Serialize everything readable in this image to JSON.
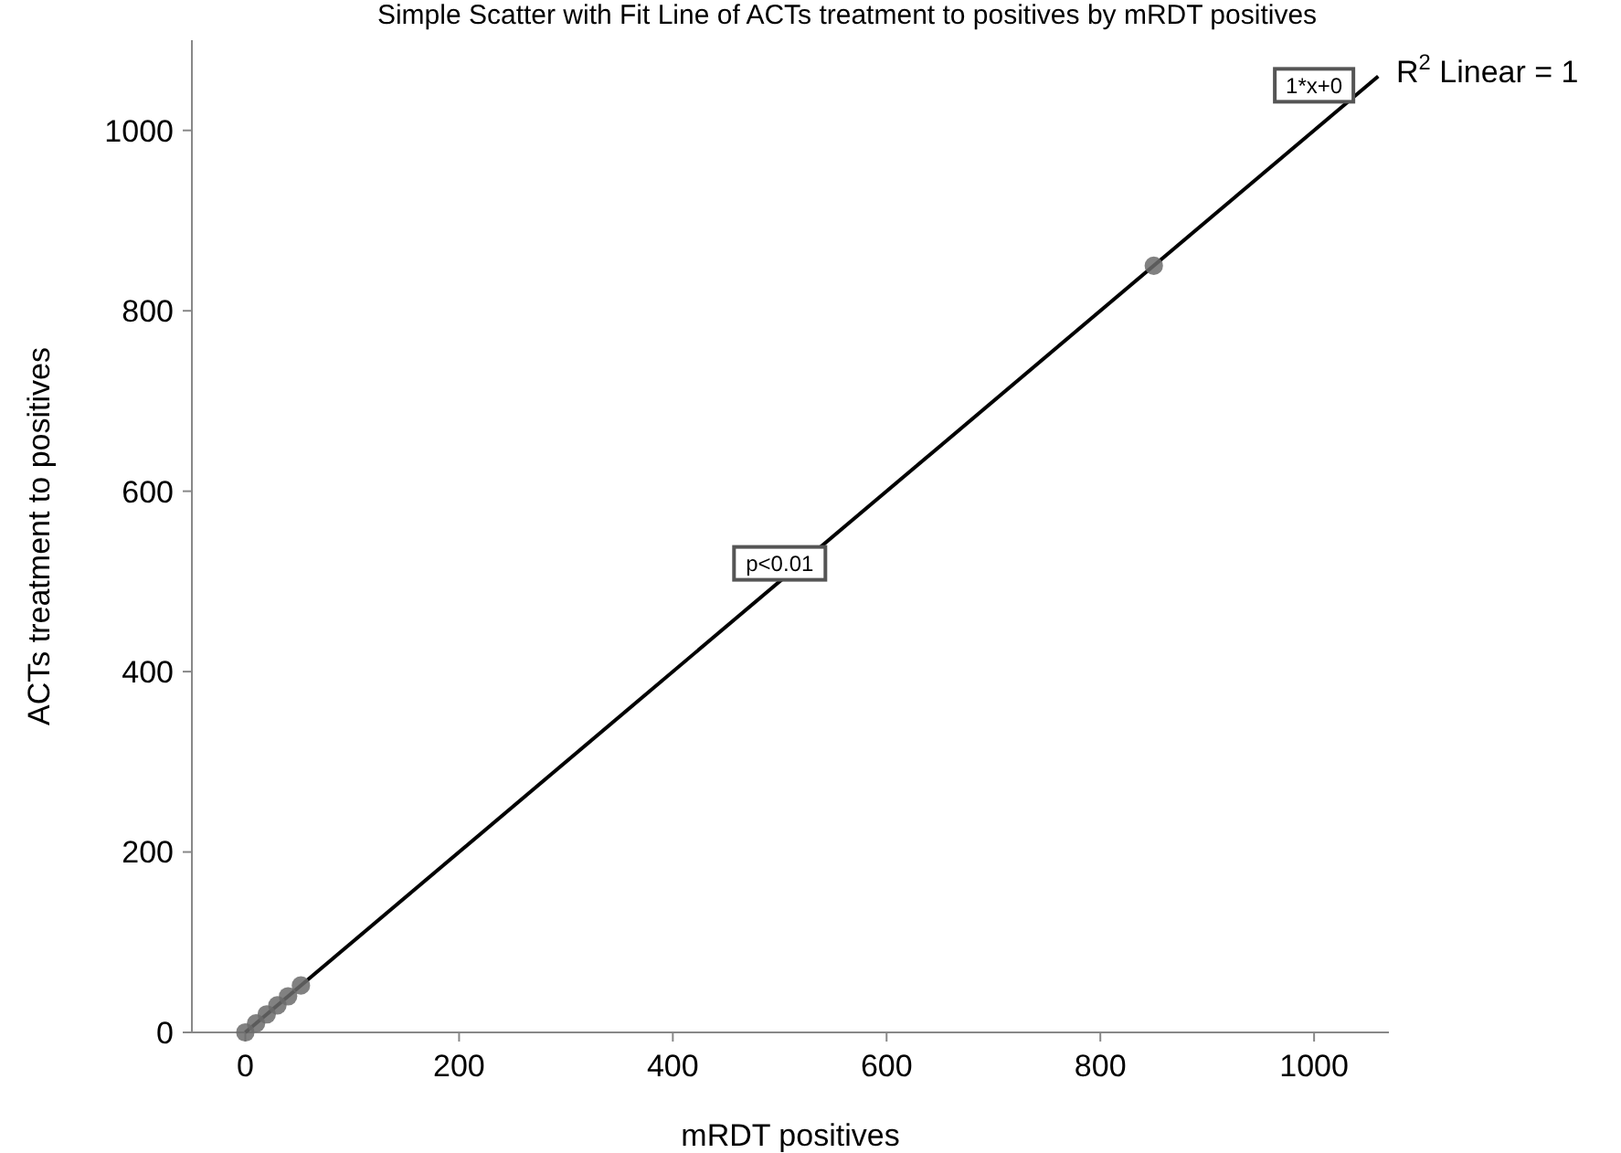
{
  "chart_data": {
    "type": "scatter",
    "title": "Simple Scatter with Fit Line of ACTs treatment to positives by mRDT positives",
    "xlabel": "mRDT positives",
    "ylabel": "ACTs treatment to positives",
    "xlim": [
      -50,
      1070
    ],
    "ylim": [
      0,
      1100
    ],
    "xticks": [
      0,
      200,
      400,
      600,
      800,
      1000
    ],
    "yticks": [
      0,
      200,
      400,
      600,
      800,
      1000
    ],
    "grid": false,
    "marker": "circle",
    "series": [
      {
        "color": "#6b6b6b",
        "x": [
          0,
          10,
          20,
          30,
          40,
          52,
          850
        ],
        "values": [
          0,
          10,
          20,
          30,
          40,
          52,
          850
        ]
      },
      {
        "type": "line",
        "color": "#000000",
        "marker": "none",
        "line_style": "solid",
        "x": [
          0,
          1060
        ],
        "values": [
          0,
          1060
        ]
      }
    ],
    "annotations": [
      {
        "text": "1*x+0",
        "x": 1000,
        "y": 1050
      },
      "p<0.01",
      "R$^{2}$ Linear = 1"
    ]
  }
}
